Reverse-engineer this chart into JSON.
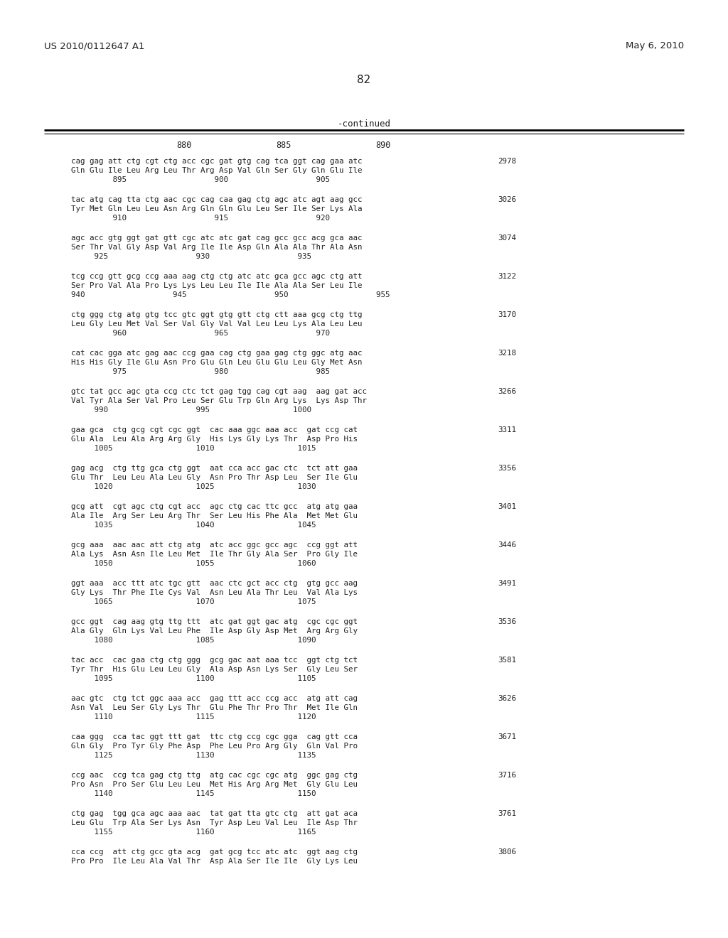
{
  "header_left": "US 2010/0112647 A1",
  "header_right": "May 6, 2010",
  "page_number": "82",
  "continued_label": "-continued",
  "background_color": "#ffffff",
  "text_color": "#231f20",
  "content_blocks": [
    {
      "dna": "cag gag att ctg cgt ctg acc cgc gat gtg cag tca ggt cag gaa atc",
      "aa": "Gln Glu Ile Leu Arg Leu Thr Arg Asp Val Gln Ser Gly Gln Glu Ile",
      "ruler": "         895                   900                   905",
      "num": "2978"
    },
    {
      "dna": "tac atg cag tta ctg aac cgc cag caa gag ctg agc atc agt aag gcc",
      "aa": "Tyr Met Gln Leu Leu Asn Arg Gln Gln Glu Leu Ser Ile Ser Lys Ala",
      "ruler": "         910                   915                   920",
      "num": "3026"
    },
    {
      "dna": "agc acc gtg ggt gat gtt cgc atc atc gat cag gcc gcc acg gca aac",
      "aa": "Ser Thr Val Gly Asp Val Arg Ile Ile Asp Gln Ala Ala Thr Ala Asn",
      "ruler": "     925                   930                   935",
      "num": "3074"
    },
    {
      "dna": "tcg ccg gtt gcg ccg aaa aag ctg ctg atc atc gca gcc agc ctg att",
      "aa": "Ser Pro Val Ala Pro Lys Lys Leu Leu Ile Ile Ala Ala Ser Leu Ile",
      "ruler": "940                   945                   950                   955",
      "num": "3122"
    },
    {
      "dna": "ctg ggg ctg atg gtg tcc gtc ggt gtg gtt ctg ctt aaa gcg ctg ttg",
      "aa": "Leu Gly Leu Met Val Ser Val Gly Val Val Leu Leu Lys Ala Leu Leu",
      "ruler": "         960                   965                   970",
      "num": "3170"
    },
    {
      "dna": "cat cac gga atc gag aac ccg gaa cag ctg gaa gag ctg ggc atg aac",
      "aa": "His His Gly Ile Glu Asn Pro Glu Gln Leu Glu Glu Leu Gly Met Asn",
      "ruler": "         975                   980                   985",
      "num": "3218"
    },
    {
      "dna": "gtc tat gcc agc gta ccg ctc tct gag tgg cag cgt aag  aag gat acc",
      "aa": "Val Tyr Ala Ser Val Pro Leu Ser Glu Trp Gln Arg Lys  Lys Asp Thr",
      "ruler": "     990                   995                  1000",
      "num": "3266"
    },
    {
      "dna": "gaa gca  ctg gcg cgt cgc ggt  cac aaa ggc aaa acc  gat ccg cat",
      "aa": "Glu Ala  Leu Ala Arg Arg Gly  His Lys Gly Lys Thr  Asp Pro His",
      "ruler": "     1005                  1010                  1015",
      "num": "3311"
    },
    {
      "dna": "gag acg  ctg ttg gca ctg ggt  aat cca acc gac ctc  tct att gaa",
      "aa": "Glu Thr  Leu Leu Ala Leu Gly  Asn Pro Thr Asp Leu  Ser Ile Glu",
      "ruler": "     1020                  1025                  1030",
      "num": "3356"
    },
    {
      "dna": "gcg att  cgt agc ctg cgt acc  agc ctg cac ttc gcc  atg atg gaa",
      "aa": "Ala Ile  Arg Ser Leu Arg Thr  Ser Leu His Phe Ala  Met Met Glu",
      "ruler": "     1035                  1040                  1045",
      "num": "3401"
    },
    {
      "dna": "gcg aaa  aac aac att ctg atg  atc acc ggc gcc agc  ccg ggt att",
      "aa": "Ala Lys  Asn Asn Ile Leu Met  Ile Thr Gly Ala Ser  Pro Gly Ile",
      "ruler": "     1050                  1055                  1060",
      "num": "3446"
    },
    {
      "dna": "ggt aaa  acc ttt atc tgc gtt  aac ctc gct acc ctg  gtg gcc aag",
      "aa": "Gly Lys  Thr Phe Ile Cys Val  Asn Leu Ala Thr Leu  Val Ala Lys",
      "ruler": "     1065                  1070                  1075",
      "num": "3491"
    },
    {
      "dna": "gcc ggt  cag aag gtg ttg ttt  atc gat ggt gac atg  cgc cgc ggt",
      "aa": "Ala Gly  Gln Lys Val Leu Phe  Ile Asp Gly Asp Met  Arg Arg Gly",
      "ruler": "     1080                  1085                  1090",
      "num": "3536"
    },
    {
      "dna": "tac acc  cac gaa ctg ctg ggg  gcg gac aat aaa tcc  ggt ctg tct",
      "aa": "Tyr Thr  His Glu Leu Leu Gly  Ala Asp Asn Lys Ser  Gly Leu Ser",
      "ruler": "     1095                  1100                  1105",
      "num": "3581"
    },
    {
      "dna": "aac gtc  ctg tct ggc aaa acc  gag ttt acc ccg acc  atg att cag",
      "aa": "Asn Val  Leu Ser Gly Lys Thr  Glu Phe Thr Pro Thr  Met Ile Gln",
      "ruler": "     1110                  1115                  1120",
      "num": "3626"
    },
    {
      "dna": "caa ggg  cca tac ggt ttt gat  ttc ctg ccg cgc gga  cag gtt cca",
      "aa": "Gln Gly  Pro Tyr Gly Phe Asp  Phe Leu Pro Arg Gly  Gln Val Pro",
      "ruler": "     1125                  1130                  1135",
      "num": "3671"
    },
    {
      "dna": "ccg aac  ccg tca gag ctg ttg  atg cac cgc cgc atg  ggc gag ctg",
      "aa": "Pro Asn  Pro Ser Glu Leu Leu  Met His Arg Arg Met  Gly Glu Leu",
      "ruler": "     1140                  1145                  1150",
      "num": "3716"
    },
    {
      "dna": "ctg gag  tgg gca agc aaa aac  tat gat tta gtc ctg  att gat aca",
      "aa": "Leu Glu  Trp Ala Ser Lys Asn  Tyr Asp Leu Val Leu  Ile Asp Thr",
      "ruler": "     1155                  1160                  1165",
      "num": "3761"
    },
    {
      "dna": "cca ccg  att ctg gcc gta acg  gat gcg tcc atc atc  ggt aag ctg",
      "aa": "Pro Pro  Ile Leu Ala Val Thr  Asp Ala Ser Ile Ile  Gly Lys Leu",
      "ruler": "",
      "num": "3806"
    }
  ]
}
